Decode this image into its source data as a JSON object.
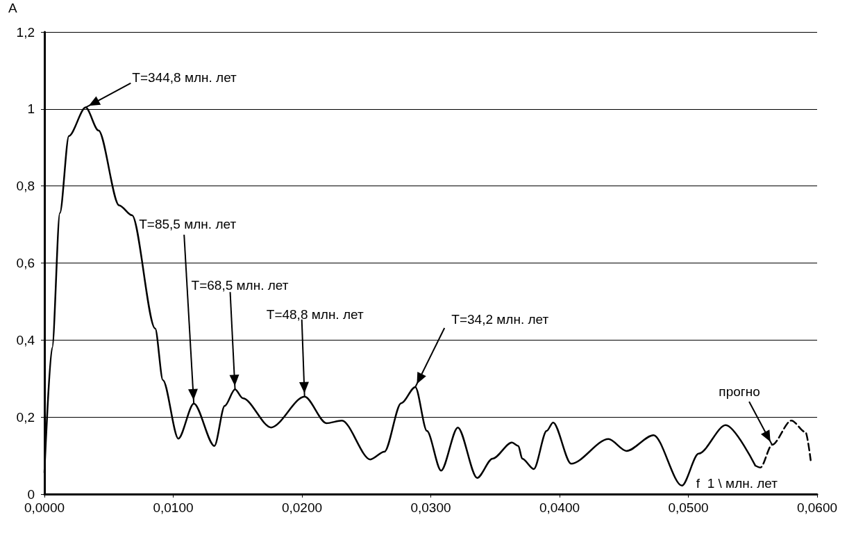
{
  "chart_data": {
    "type": "line",
    "xlabel": "f  1 \\ млн. лет",
    "ylabel": "А",
    "xlim": [
      0,
      0.06
    ],
    "ylim": [
      0,
      1.2
    ],
    "xticks": [
      {
        "value": 0,
        "label": "0,0000"
      },
      {
        "value": 0.01,
        "label": "0,0100"
      },
      {
        "value": 0.02,
        "label": "0,0200"
      },
      {
        "value": 0.03,
        "label": "0,0300"
      },
      {
        "value": 0.04,
        "label": "0,0400"
      },
      {
        "value": 0.05,
        "label": "0,0500"
      },
      {
        "value": 0.06,
        "label": "0,0600"
      }
    ],
    "yticks": [
      0,
      {
        "value": 0.2,
        "label": "0,2"
      },
      {
        "value": 0.4,
        "label": "0,4"
      },
      {
        "value": 0.6,
        "label": "0,6"
      },
      {
        "value": 0.8,
        "label": "0,8"
      },
      1,
      {
        "value": 1.2,
        "label": "1,2"
      }
    ],
    "grid": "y",
    "marker": "none",
    "series": [
      {
        "color": "#000000",
        "line_style": "solid",
        "x": [
          0,
          0.0006,
          0.0012,
          0.0019,
          0.0032,
          0.0042,
          0.0058,
          0.0068,
          0.0086,
          0.0092,
          0.0104,
          0.0116,
          0.0132,
          0.014,
          0.0148,
          0.0154,
          0.0176,
          0.0202,
          0.0219,
          0.0231,
          0.0253,
          0.0264,
          0.0277,
          0.0288,
          0.0297,
          0.0308,
          0.0321,
          0.0336,
          0.0348,
          0.0363,
          0.0368,
          0.0371,
          0.038,
          0.039,
          0.0395,
          0.0409,
          0.0438,
          0.0452,
          0.0473,
          0.0495,
          0.0508,
          0.0529,
          0.0552
        ],
        "values": [
          0.056,
          0.38,
          0.73,
          0.93,
          1.004,
          0.944,
          0.75,
          0.724,
          0.43,
          0.296,
          0.144,
          0.235,
          0.125,
          0.229,
          0.272,
          0.249,
          0.173,
          0.253,
          0.184,
          0.191,
          0.09,
          0.11,
          0.236,
          0.278,
          0.164,
          0.061,
          0.173,
          0.042,
          0.092,
          0.134,
          0.125,
          0.092,
          0.065,
          0.164,
          0.186,
          0.079,
          0.143,
          0.112,
          0.153,
          0.022,
          0.105,
          0.179,
          0.074
        ]
      },
      {
        "color": "#000000",
        "line_style": "dashed",
        "x": [
          0.0552,
          0.0556,
          0.0565,
          0.058,
          0.0591,
          0.0595
        ],
        "values": [
          0.074,
          0.069,
          0.128,
          0.191,
          0.161,
          0.088
        ]
      }
    ],
    "annotations": [
      {
        "text": "T=344,8 млн. лет",
        "x": 0.0032,
        "y": 1.004
      },
      {
        "text": "T=85,5 млн. лет",
        "x": 0.0116,
        "y": 0.235
      },
      {
        "text": "T=68,5 млн. лет",
        "x": 0.0148,
        "y": 0.272
      },
      {
        "text": "T=48,8 млн. лет",
        "x": 0.0202,
        "y": 0.253
      },
      {
        "text": "T=34,2 млн. лет",
        "x": 0.0288,
        "y": 0.278
      },
      {
        "text": "прогно",
        "x": 0.0565,
        "y": 0.128
      }
    ]
  }
}
